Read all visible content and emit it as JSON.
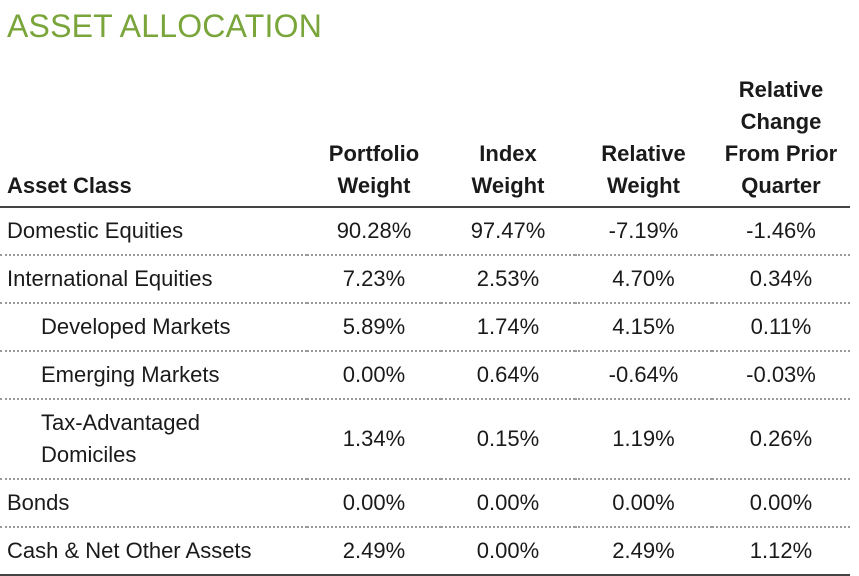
{
  "title": "ASSET ALLOCATION",
  "colors": {
    "title": "#7aa53a",
    "rule": "#444444",
    "dotted": "#9a9a9a"
  },
  "headers": [
    [
      "Asset Class"
    ],
    [
      "Portfolio",
      "Weight"
    ],
    [
      "Index",
      "Weight"
    ],
    [
      "Relative",
      "Weight"
    ],
    [
      "Relative",
      "Change",
      "From Prior",
      "Quarter"
    ]
  ],
  "rows": [
    {
      "label": [
        "Domestic Equities"
      ],
      "indent": false,
      "portfolio_weight": "90.28%",
      "index_weight": "97.47%",
      "relative_weight": "-7.19%",
      "relative_change": "-1.46%"
    },
    {
      "label": [
        "International Equities"
      ],
      "indent": false,
      "portfolio_weight": "7.23%",
      "index_weight": "2.53%",
      "relative_weight": "4.70%",
      "relative_change": "0.34%"
    },
    {
      "label": [
        "Developed Markets"
      ],
      "indent": true,
      "portfolio_weight": "5.89%",
      "index_weight": "1.74%",
      "relative_weight": "4.15%",
      "relative_change": "0.11%"
    },
    {
      "label": [
        "Emerging Markets"
      ],
      "indent": true,
      "portfolio_weight": "0.00%",
      "index_weight": "0.64%",
      "relative_weight": "-0.64%",
      "relative_change": "-0.03%"
    },
    {
      "label": [
        "Tax-Advantaged",
        "Domiciles"
      ],
      "indent": true,
      "portfolio_weight": "1.34%",
      "index_weight": "0.15%",
      "relative_weight": "1.19%",
      "relative_change": "0.26%"
    },
    {
      "label": [
        "Bonds"
      ],
      "indent": false,
      "portfolio_weight": "0.00%",
      "index_weight": "0.00%",
      "relative_weight": "0.00%",
      "relative_change": "0.00%"
    },
    {
      "label": [
        "Cash & Net Other Assets"
      ],
      "indent": false,
      "portfolio_weight": "2.49%",
      "index_weight": "0.00%",
      "relative_weight": "2.49%",
      "relative_change": "1.12%"
    }
  ]
}
